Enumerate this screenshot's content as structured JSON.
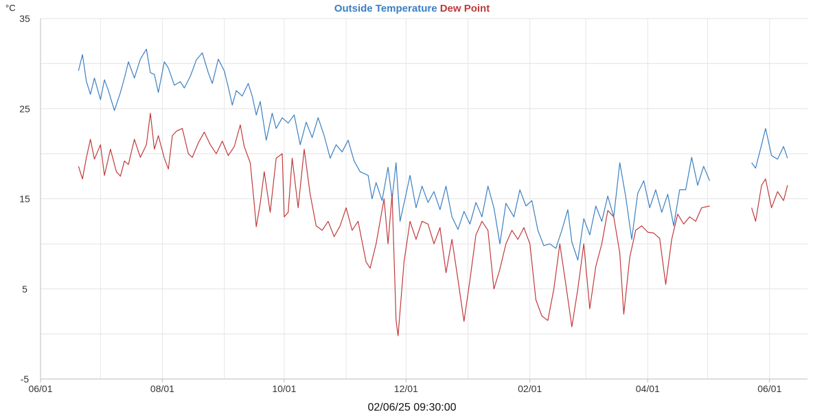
{
  "chart_data": {
    "type": "line",
    "title_parts": [
      {
        "text": "Outside Temperature",
        "color": "#3a7fc1"
      },
      {
        "text": "Dew Point",
        "color": "#c0393b"
      }
    ],
    "ylabel": "°C",
    "ylim": [
      -5,
      35
    ],
    "yticks": [
      -5,
      5,
      15,
      25,
      35
    ],
    "xlim": [
      "2024-06-01",
      "2025-06-20"
    ],
    "xticks": [
      {
        "date": "2024-06-01",
        "label": "06/01"
      },
      {
        "date": "2024-08-01",
        "label": "08/01"
      },
      {
        "date": "2024-10-01",
        "label": "10/01"
      },
      {
        "date": "2024-12-01",
        "label": "12/01"
      },
      {
        "date": "2025-02-01",
        "label": "02/01"
      },
      {
        "date": "2025-04-01",
        "label": "04/01"
      },
      {
        "date": "2025-06-01",
        "label": "06/01"
      }
    ],
    "grid": true,
    "timestamp": "02/06/25 09:30:00",
    "series": [
      {
        "name": "Outside Temperature",
        "color": "#3a7fc1",
        "points": [
          [
            "2024-06-20",
            29.2
          ],
          [
            "2024-06-22",
            31.0
          ],
          [
            "2024-06-24",
            28.0
          ],
          [
            "2024-06-26",
            26.6
          ],
          [
            "2024-06-28",
            28.4
          ],
          [
            "2024-07-01",
            26.0
          ],
          [
            "2024-07-03",
            28.2
          ],
          [
            "2024-07-05",
            27.0
          ],
          [
            "2024-07-08",
            24.8
          ],
          [
            "2024-07-11",
            26.8
          ],
          [
            "2024-07-13",
            28.4
          ],
          [
            "2024-07-15",
            30.2
          ],
          [
            "2024-07-18",
            28.4
          ],
          [
            "2024-07-21",
            30.5
          ],
          [
            "2024-07-24",
            31.6
          ],
          [
            "2024-07-26",
            29.0
          ],
          [
            "2024-07-28",
            28.8
          ],
          [
            "2024-07-30",
            26.8
          ],
          [
            "2024-08-02",
            30.2
          ],
          [
            "2024-08-04",
            29.5
          ],
          [
            "2024-08-07",
            27.6
          ],
          [
            "2024-08-10",
            28.0
          ],
          [
            "2024-08-12",
            27.3
          ],
          [
            "2024-08-15",
            28.6
          ],
          [
            "2024-08-18",
            30.4
          ],
          [
            "2024-08-21",
            31.2
          ],
          [
            "2024-08-24",
            29.0
          ],
          [
            "2024-08-26",
            27.8
          ],
          [
            "2024-08-29",
            30.5
          ],
          [
            "2024-09-01",
            29.2
          ],
          [
            "2024-09-03",
            27.4
          ],
          [
            "2024-09-05",
            25.4
          ],
          [
            "2024-09-07",
            27.0
          ],
          [
            "2024-09-10",
            26.4
          ],
          [
            "2024-09-13",
            27.8
          ],
          [
            "2024-09-15",
            26.4
          ],
          [
            "2024-09-17",
            24.3
          ],
          [
            "2024-09-19",
            25.8
          ],
          [
            "2024-09-22",
            21.5
          ],
          [
            "2024-09-25",
            24.5
          ],
          [
            "2024-09-27",
            22.8
          ],
          [
            "2024-09-30",
            24.0
          ],
          [
            "2024-10-03",
            23.4
          ],
          [
            "2024-10-06",
            24.3
          ],
          [
            "2024-10-09",
            21.0
          ],
          [
            "2024-10-12",
            23.5
          ],
          [
            "2024-10-15",
            21.8
          ],
          [
            "2024-10-18",
            24.0
          ],
          [
            "2024-10-21",
            22.0
          ],
          [
            "2024-10-24",
            19.5
          ],
          [
            "2024-10-27",
            21.0
          ],
          [
            "2024-10-30",
            20.2
          ],
          [
            "2024-11-02",
            21.5
          ],
          [
            "2024-11-05",
            19.2
          ],
          [
            "2024-11-08",
            18.0
          ],
          [
            "2024-11-12",
            17.6
          ],
          [
            "2024-11-14",
            15.0
          ],
          [
            "2024-11-16",
            16.8
          ],
          [
            "2024-11-19",
            14.8
          ],
          [
            "2024-11-22",
            18.5
          ],
          [
            "2024-11-24",
            15.0
          ],
          [
            "2024-11-26",
            19.0
          ],
          [
            "2024-11-28",
            12.5
          ],
          [
            "2024-12-01",
            15.5
          ],
          [
            "2024-12-03",
            17.6
          ],
          [
            "2024-12-06",
            14.0
          ],
          [
            "2024-12-09",
            16.4
          ],
          [
            "2024-12-12",
            14.6
          ],
          [
            "2024-12-15",
            15.8
          ],
          [
            "2024-12-18",
            13.8
          ],
          [
            "2024-12-21",
            16.4
          ],
          [
            "2024-12-24",
            13.0
          ],
          [
            "2024-12-27",
            11.6
          ],
          [
            "2024-12-30",
            13.6
          ],
          [
            "2025-01-02",
            12.2
          ],
          [
            "2025-01-05",
            14.6
          ],
          [
            "2025-01-08",
            13.0
          ],
          [
            "2025-01-11",
            16.4
          ],
          [
            "2025-01-14",
            14.0
          ],
          [
            "2025-01-17",
            10.0
          ],
          [
            "2025-01-20",
            14.5
          ],
          [
            "2025-01-24",
            13.0
          ],
          [
            "2025-01-27",
            16.0
          ],
          [
            "2025-01-30",
            14.2
          ],
          [
            "2025-02-02",
            14.8
          ],
          [
            "2025-02-05",
            11.5
          ],
          [
            "2025-02-08",
            9.8
          ],
          [
            "2025-02-11",
            10.0
          ],
          [
            "2025-02-14",
            9.5
          ],
          [
            "2025-02-17",
            11.5
          ],
          [
            "2025-02-20",
            13.8
          ],
          [
            "2025-02-22",
            10.2
          ],
          [
            "2025-02-25",
            8.2
          ],
          [
            "2025-02-28",
            12.8
          ],
          [
            "2025-03-03",
            11.0
          ],
          [
            "2025-03-06",
            14.2
          ],
          [
            "2025-03-09",
            12.5
          ],
          [
            "2025-03-12",
            15.3
          ],
          [
            "2025-03-15",
            13.0
          ],
          [
            "2025-03-18",
            19.0
          ],
          [
            "2025-03-21",
            15.2
          ],
          [
            "2025-03-24",
            10.5
          ],
          [
            "2025-03-27",
            15.6
          ],
          [
            "2025-03-30",
            17.0
          ],
          [
            "2025-04-02",
            14.0
          ],
          [
            "2025-04-05",
            16.0
          ],
          [
            "2025-04-08",
            13.5
          ],
          [
            "2025-04-11",
            15.5
          ],
          [
            "2025-04-14",
            12.0
          ],
          [
            "2025-04-17",
            16.0
          ],
          [
            "2025-04-20",
            16.0
          ],
          [
            "2025-04-23",
            19.6
          ],
          [
            "2025-04-26",
            16.5
          ],
          [
            "2025-04-29",
            18.6
          ],
          [
            "2025-05-02",
            17.0
          ],
          [
            "2025-05-23",
            19.0
          ],
          [
            "2025-05-25",
            18.4
          ],
          [
            "2025-05-28",
            21.0
          ],
          [
            "2025-05-30",
            22.8
          ],
          [
            "2025-06-02",
            19.8
          ],
          [
            "2025-06-05",
            19.4
          ],
          [
            "2025-06-08",
            20.8
          ],
          [
            "2025-06-10",
            19.5
          ]
        ]
      },
      {
        "name": "Dew Point",
        "color": "#c0393b",
        "points": [
          [
            "2024-06-20",
            18.6
          ],
          [
            "2024-06-22",
            17.2
          ],
          [
            "2024-06-24",
            19.6
          ],
          [
            "2024-06-26",
            21.6
          ],
          [
            "2024-06-28",
            19.4
          ],
          [
            "2024-07-01",
            21.0
          ],
          [
            "2024-07-03",
            17.6
          ],
          [
            "2024-07-06",
            20.5
          ],
          [
            "2024-07-09",
            18.0
          ],
          [
            "2024-07-11",
            17.5
          ],
          [
            "2024-07-13",
            19.2
          ],
          [
            "2024-07-15",
            18.8
          ],
          [
            "2024-07-18",
            21.6
          ],
          [
            "2024-07-21",
            19.6
          ],
          [
            "2024-07-24",
            21.0
          ],
          [
            "2024-07-26",
            24.5
          ],
          [
            "2024-07-28",
            20.5
          ],
          [
            "2024-07-30",
            22.0
          ],
          [
            "2024-08-02",
            19.5
          ],
          [
            "2024-08-04",
            18.3
          ],
          [
            "2024-08-06",
            22.0
          ],
          [
            "2024-08-08",
            22.5
          ],
          [
            "2024-08-11",
            22.8
          ],
          [
            "2024-08-14",
            20.0
          ],
          [
            "2024-08-16",
            19.6
          ],
          [
            "2024-08-19",
            21.2
          ],
          [
            "2024-08-22",
            22.4
          ],
          [
            "2024-08-25",
            21.0
          ],
          [
            "2024-08-28",
            20.0
          ],
          [
            "2024-08-31",
            21.4
          ],
          [
            "2024-09-03",
            19.8
          ],
          [
            "2024-09-06",
            20.8
          ],
          [
            "2024-09-09",
            23.2
          ],
          [
            "2024-09-11",
            20.8
          ],
          [
            "2024-09-14",
            19.0
          ],
          [
            "2024-09-16",
            14.5
          ],
          [
            "2024-09-17",
            11.9
          ],
          [
            "2024-09-19",
            14.5
          ],
          [
            "2024-09-21",
            18.0
          ],
          [
            "2024-09-24",
            13.5
          ],
          [
            "2024-09-27",
            19.5
          ],
          [
            "2024-09-30",
            20.0
          ],
          [
            "2024-10-01",
            13.0
          ],
          [
            "2024-10-03",
            13.5
          ],
          [
            "2024-10-05",
            19.5
          ],
          [
            "2024-10-08",
            14.0
          ],
          [
            "2024-10-11",
            20.5
          ],
          [
            "2024-10-14",
            15.5
          ],
          [
            "2024-10-17",
            12.0
          ],
          [
            "2024-10-20",
            11.5
          ],
          [
            "2024-10-23",
            12.5
          ],
          [
            "2024-10-26",
            10.8
          ],
          [
            "2024-10-29",
            12.0
          ],
          [
            "2024-11-01",
            14.0
          ],
          [
            "2024-11-04",
            11.5
          ],
          [
            "2024-11-07",
            12.5
          ],
          [
            "2024-11-11",
            8.0
          ],
          [
            "2024-11-13",
            7.3
          ],
          [
            "2024-11-16",
            10.0
          ],
          [
            "2024-11-20",
            15.0
          ],
          [
            "2024-11-22",
            10.0
          ],
          [
            "2024-11-24",
            15.5
          ],
          [
            "2024-11-26",
            1.5
          ],
          [
            "2024-11-27",
            -0.2
          ],
          [
            "2024-11-30",
            8.0
          ],
          [
            "2024-12-03",
            12.5
          ],
          [
            "2024-12-06",
            10.5
          ],
          [
            "2024-12-09",
            12.5
          ],
          [
            "2024-12-12",
            12.2
          ],
          [
            "2024-12-15",
            10.0
          ],
          [
            "2024-12-18",
            11.8
          ],
          [
            "2024-12-21",
            6.8
          ],
          [
            "2024-12-24",
            10.5
          ],
          [
            "2024-12-27",
            6.0
          ],
          [
            "2024-12-30",
            1.4
          ],
          [
            "2025-01-02",
            6.0
          ],
          [
            "2025-01-05",
            11.0
          ],
          [
            "2025-01-08",
            12.5
          ],
          [
            "2025-01-11",
            11.5
          ],
          [
            "2025-01-14",
            5.0
          ],
          [
            "2025-01-17",
            7.2
          ],
          [
            "2025-01-20",
            10.0
          ],
          [
            "2025-01-23",
            11.5
          ],
          [
            "2025-01-26",
            10.5
          ],
          [
            "2025-01-29",
            11.8
          ],
          [
            "2025-02-01",
            10.0
          ],
          [
            "2025-02-04",
            3.8
          ],
          [
            "2025-02-07",
            2.0
          ],
          [
            "2025-02-10",
            1.5
          ],
          [
            "2025-02-13",
            5.0
          ],
          [
            "2025-02-16",
            10.0
          ],
          [
            "2025-02-19",
            5.5
          ],
          [
            "2025-02-22",
            0.8
          ],
          [
            "2025-02-25",
            5.0
          ],
          [
            "2025-02-28",
            10.0
          ],
          [
            "2025-03-03",
            2.8
          ],
          [
            "2025-03-06",
            7.5
          ],
          [
            "2025-03-09",
            10.0
          ],
          [
            "2025-03-12",
            13.7
          ],
          [
            "2025-03-15",
            13.0
          ],
          [
            "2025-03-18",
            9.0
          ],
          [
            "2025-03-20",
            2.2
          ],
          [
            "2025-03-23",
            8.5
          ],
          [
            "2025-03-26",
            11.5
          ],
          [
            "2025-03-29",
            12.0
          ],
          [
            "2025-04-01",
            11.3
          ],
          [
            "2025-04-04",
            11.2
          ],
          [
            "2025-04-07",
            10.6
          ],
          [
            "2025-04-10",
            5.5
          ],
          [
            "2025-04-13",
            10.5
          ],
          [
            "2025-04-16",
            13.3
          ],
          [
            "2025-04-19",
            12.2
          ],
          [
            "2025-04-22",
            13.0
          ],
          [
            "2025-04-25",
            12.5
          ],
          [
            "2025-04-28",
            14.0
          ],
          [
            "2025-05-02",
            14.2
          ],
          [
            "2025-05-23",
            14.0
          ],
          [
            "2025-05-25",
            12.5
          ],
          [
            "2025-05-28",
            16.5
          ],
          [
            "2025-05-30",
            17.2
          ],
          [
            "2025-06-02",
            14.0
          ],
          [
            "2025-06-05",
            15.8
          ],
          [
            "2025-06-08",
            14.8
          ],
          [
            "2025-06-10",
            16.5
          ]
        ]
      }
    ]
  }
}
